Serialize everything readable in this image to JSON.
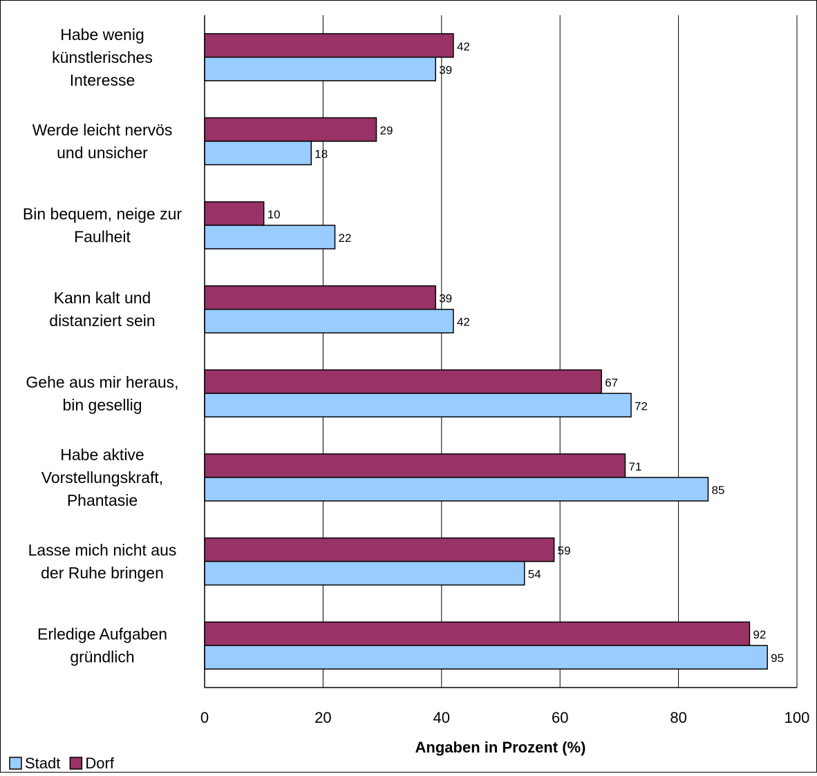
{
  "chart_data": {
    "type": "bar",
    "orientation": "horizontal",
    "categories": [
      [
        "Habe wenig",
        "künstlerisches",
        "Interesse"
      ],
      [
        "Werde leicht nervös",
        "und unsicher"
      ],
      [
        "Bin bequem, neige zur",
        "Faulheit"
      ],
      [
        "Kann kalt und",
        "distanziert sein"
      ],
      [
        "Gehe aus mir heraus,",
        "bin gesellig"
      ],
      [
        "Habe aktive",
        "Vorstellungskraft,",
        "Phantasie"
      ],
      [
        "Lasse mich nicht aus",
        "der Ruhe bringen"
      ],
      [
        "Erledige Aufgaben",
        "gründlich"
      ]
    ],
    "series": [
      {
        "name": "Dorf",
        "color": "#993366",
        "values": [
          42,
          29,
          10,
          39,
          67,
          71,
          59,
          92
        ]
      },
      {
        "name": "Stadt",
        "color": "#99ccff",
        "values": [
          39,
          18,
          22,
          42,
          72,
          85,
          54,
          95
        ]
      }
    ],
    "xlabel": "Angaben in Prozent (%)",
    "xlim": [
      0,
      100
    ],
    "xticks": [
      0,
      20,
      40,
      60,
      80,
      100
    ],
    "grid": true,
    "data_labels": true,
    "legend": {
      "placement": "bottom-left",
      "entries": [
        {
          "name": "Stadt",
          "color": "#99ccff"
        },
        {
          "name": "Dorf",
          "color": "#993366"
        }
      ]
    }
  }
}
